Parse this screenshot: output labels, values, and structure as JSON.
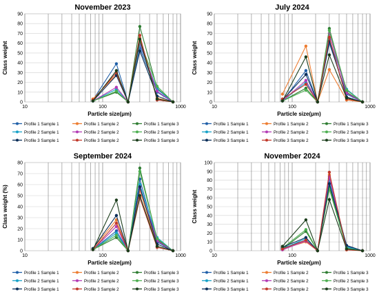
{
  "colors": {
    "P1S1": "#1f5fa8",
    "P1S2": "#ed7d31",
    "P1S3": "#2e7d32",
    "P2S1": "#17a2c8",
    "P2S2": "#b23ab5",
    "P2S3": "#4caf50",
    "P3S1": "#0b2e59",
    "P3S2": "#c0392b",
    "P3S3": "#1b3d1b"
  },
  "legend_entries": [
    {
      "key": "P1S1",
      "label": "Profile 1 Sample 1"
    },
    {
      "key": "P1S2",
      "label": "Profile 1 Sample 2"
    },
    {
      "key": "P1S3",
      "label": "Profile 1 Sample 3"
    },
    {
      "key": "P2S1",
      "label": "Profile 2 Sample 1"
    },
    {
      "key": "P2S2",
      "label": "Profile 2 Sample 2"
    },
    {
      "key": "P2S3",
      "label": "Profile 2 Sample 3"
    },
    {
      "key": "P3S1",
      "label": "Profile 3 Sample 1"
    },
    {
      "key": "P3S2",
      "label": "Profile 3 Sample 2"
    },
    {
      "key": "P3S3",
      "label": "Profile 3 Sample 3"
    }
  ],
  "chart_data": [
    {
      "type": "line",
      "title": "November 2023",
      "xlabel": "Particle size(μm)",
      "ylabel": "Class weight",
      "xscale": "log",
      "xlim": [
        10,
        1000
      ],
      "ylim": [
        0,
        90
      ],
      "yticks": [
        0,
        10,
        20,
        30,
        40,
        50,
        60,
        70,
        80,
        90
      ],
      "xtick_labels": [
        "10",
        "100",
        "1000"
      ],
      "grid": true,
      "legend_placement": "bottom",
      "x": [
        75,
        150,
        212,
        300,
        500,
        800
      ],
      "series": [
        {
          "key": "P1S1",
          "name": "Profile 1 Sample 1",
          "values": [
            2,
            39,
            0,
            55,
            10,
            0
          ]
        },
        {
          "key": "P1S2",
          "name": "Profile 1 Sample 2",
          "values": [
            3,
            28,
            0,
            65,
            4,
            0
          ]
        },
        {
          "key": "P1S3",
          "name": "Profile 1 Sample 3",
          "values": [
            1,
            10,
            0,
            77,
            14,
            0
          ]
        },
        {
          "key": "P2S1",
          "name": "Profile 2 Sample 1",
          "values": [
            1,
            13,
            0,
            58,
            13,
            0
          ]
        },
        {
          "key": "P2S2",
          "name": "Profile 2 Sample 2",
          "values": [
            1,
            15,
            0,
            60,
            11,
            0
          ]
        },
        {
          "key": "P2S3",
          "name": "Profile 2 Sample 3",
          "values": [
            1,
            11,
            0,
            62,
            16,
            0
          ]
        },
        {
          "key": "P3S1",
          "name": "Profile 3 Sample 1",
          "values": [
            1,
            27,
            0,
            52,
            6,
            0
          ]
        },
        {
          "key": "P3S2",
          "name": "Profile 3 Sample 2",
          "values": [
            2,
            30,
            0,
            68,
            2,
            0
          ]
        },
        {
          "key": "P3S3",
          "name": "Profile 3 Sample 3",
          "values": [
            1,
            32,
            0,
            64,
            3,
            0
          ]
        }
      ]
    },
    {
      "type": "line",
      "title": "July 2024",
      "xlabel": "Particle size(μm)",
      "ylabel": "Class weight",
      "xscale": "log",
      "xlim": [
        10,
        1000
      ],
      "ylim": [
        0,
        90
      ],
      "yticks": [
        0,
        10,
        20,
        30,
        40,
        50,
        60,
        70,
        80,
        90
      ],
      "xtick_labels": [
        "10",
        "100",
        "1000"
      ],
      "grid": true,
      "legend_placement": "bottom",
      "x": [
        75,
        150,
        212,
        300,
        500,
        800
      ],
      "series": [
        {
          "key": "P1S1",
          "name": "Profile 1 Sample 1",
          "values": [
            1,
            32,
            0,
            60,
            8,
            0
          ]
        },
        {
          "key": "P1S2",
          "name": "Profile 1 Sample 2",
          "values": [
            8,
            57,
            0,
            33,
            2,
            0
          ]
        },
        {
          "key": "P1S3",
          "name": "Profile 1 Sample 3",
          "values": [
            1,
            14,
            0,
            75,
            10,
            0
          ]
        },
        {
          "key": "P2S1",
          "name": "Profile 2 Sample 1",
          "values": [
            1,
            20,
            0,
            64,
            13,
            0
          ]
        },
        {
          "key": "P2S2",
          "name": "Profile 2 Sample 2",
          "values": [
            1,
            22,
            0,
            70,
            9,
            0
          ]
        },
        {
          "key": "P2S3",
          "name": "Profile 2 Sample 3",
          "values": [
            1,
            12,
            0,
            73,
            12,
            0
          ]
        },
        {
          "key": "P3S1",
          "name": "Profile 3 Sample 1",
          "values": [
            2,
            28,
            0,
            62,
            5,
            0
          ]
        },
        {
          "key": "P3S2",
          "name": "Profile 3 Sample 2",
          "values": [
            3,
            18,
            0,
            66,
            3,
            0
          ]
        },
        {
          "key": "P3S3",
          "name": "Profile 3 Sample 3",
          "values": [
            1,
            46,
            0,
            48,
            4,
            0
          ]
        }
      ]
    },
    {
      "type": "line",
      "title": "September 2024",
      "xlabel": "Particle size(μm)",
      "ylabel": "Class weight (%)",
      "xscale": "log",
      "xlim": [
        10,
        1000
      ],
      "ylim": [
        0,
        80
      ],
      "yticks": [
        0,
        10,
        20,
        30,
        40,
        50,
        60,
        70,
        80
      ],
      "xtick_labels": [
        "10",
        "100",
        "1000"
      ],
      "grid": true,
      "legend_placement": "bottom",
      "x": [
        75,
        150,
        212,
        300,
        500,
        800
      ],
      "series": [
        {
          "key": "P1S1",
          "name": "Profile 1 Sample 1",
          "values": [
            1,
            18,
            0,
            65,
            8,
            0
          ]
        },
        {
          "key": "P1S2",
          "name": "Profile 1 Sample 2",
          "values": [
            2,
            28,
            0,
            55,
            4,
            0
          ]
        },
        {
          "key": "P1S3",
          "name": "Profile 1 Sample 3",
          "values": [
            1,
            12,
            0,
            75,
            10,
            0
          ]
        },
        {
          "key": "P2S1",
          "name": "Profile 2 Sample 1",
          "values": [
            1,
            16,
            0,
            60,
            12,
            0
          ]
        },
        {
          "key": "P2S2",
          "name": "Profile 2 Sample 2",
          "values": [
            1,
            22,
            0,
            57,
            9,
            0
          ]
        },
        {
          "key": "P2S3",
          "name": "Profile 2 Sample 3",
          "values": [
            1,
            14,
            0,
            72,
            11,
            0
          ]
        },
        {
          "key": "P3S1",
          "name": "Profile 3 Sample 1",
          "values": [
            2,
            32,
            0,
            58,
            6,
            0
          ]
        },
        {
          "key": "P3S2",
          "name": "Profile 3 Sample 2",
          "values": [
            1,
            25,
            0,
            48,
            3,
            0
          ]
        },
        {
          "key": "P3S3",
          "name": "Profile 3 Sample 3",
          "values": [
            1,
            46,
            0,
            50,
            4,
            0
          ]
        }
      ]
    },
    {
      "type": "line",
      "title": "November 2024",
      "xlabel": "Particle size(μm)",
      "ylabel": "Class weight",
      "xscale": "log",
      "xlim": [
        10,
        1000
      ],
      "ylim": [
        0,
        100
      ],
      "yticks": [
        0,
        10,
        20,
        30,
        40,
        50,
        60,
        70,
        80,
        90,
        100
      ],
      "xtick_labels": [
        "10",
        "100",
        "1000"
      ],
      "grid": true,
      "legend_placement": "bottom",
      "x": [
        75,
        150,
        212,
        300,
        500,
        800
      ],
      "series": [
        {
          "key": "P1S1",
          "name": "Profile 1 Sample 1",
          "values": [
            3,
            12,
            0,
            82,
            5,
            0
          ]
        },
        {
          "key": "P1S2",
          "name": "Profile 1 Sample 2",
          "values": [
            2,
            10,
            0,
            86,
            1,
            0
          ]
        },
        {
          "key": "P1S3",
          "name": "Profile 1 Sample 3",
          "values": [
            2,
            22,
            0,
            73,
            3,
            0
          ]
        },
        {
          "key": "P2S1",
          "name": "Profile 2 Sample 1",
          "values": [
            2,
            14,
            0,
            78,
            4,
            0
          ]
        },
        {
          "key": "P2S2",
          "name": "Profile 2 Sample 2",
          "values": [
            1,
            11,
            0,
            84,
            2,
            0
          ]
        },
        {
          "key": "P2S3",
          "name": "Profile 2 Sample 3",
          "values": [
            3,
            24,
            0,
            70,
            3,
            0
          ]
        },
        {
          "key": "P3S1",
          "name": "Profile 3 Sample 1",
          "values": [
            4,
            15,
            0,
            76,
            6,
            0
          ]
        },
        {
          "key": "P3S2",
          "name": "Profile 3 Sample 2",
          "values": [
            2,
            12,
            0,
            89,
            1,
            0
          ]
        },
        {
          "key": "P3S3",
          "name": "Profile 3 Sample 3",
          "values": [
            5,
            35,
            0,
            58,
            2,
            0
          ]
        }
      ]
    }
  ]
}
